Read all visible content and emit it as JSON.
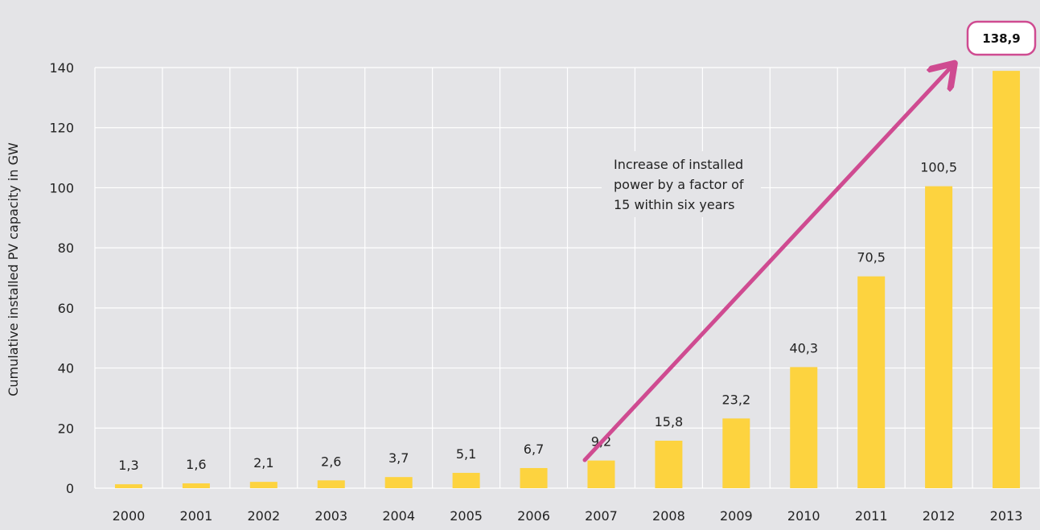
{
  "chart_data": {
    "type": "bar",
    "ylabel": "Cumulative installed PV capacity in GW",
    "xlabel": "",
    "ylim": [
      0,
      140
    ],
    "yticks": [
      0,
      20,
      40,
      60,
      80,
      100,
      120,
      140
    ],
    "categories": [
      "2000",
      "2001",
      "2002",
      "2003",
      "2004",
      "2005",
      "2006",
      "2007",
      "2008",
      "2009",
      "2010",
      "2011",
      "2012",
      "2013"
    ],
    "values": [
      1.3,
      1.6,
      2.1,
      2.6,
      3.7,
      5.1,
      6.7,
      9.2,
      15.8,
      23.2,
      40.3,
      70.5,
      100.5,
      138.9
    ],
    "value_labels": [
      "1,3",
      "1,6",
      "2,1",
      "2,6",
      "3,7",
      "5,1",
      "6,7",
      "9,2",
      "15,8",
      "23,2",
      "40,3",
      "70,5",
      "100,5",
      "138,9"
    ],
    "grid": true,
    "annotation": {
      "lines": [
        "Increase of installed",
        "power by a factor of",
        "15 within six years"
      ]
    },
    "highlight_label": "138,9",
    "colors": {
      "bar": "#fdd33f",
      "arrow": "#cf4b91",
      "grid": "#ffffff",
      "background": "#e4e4e7"
    }
  }
}
